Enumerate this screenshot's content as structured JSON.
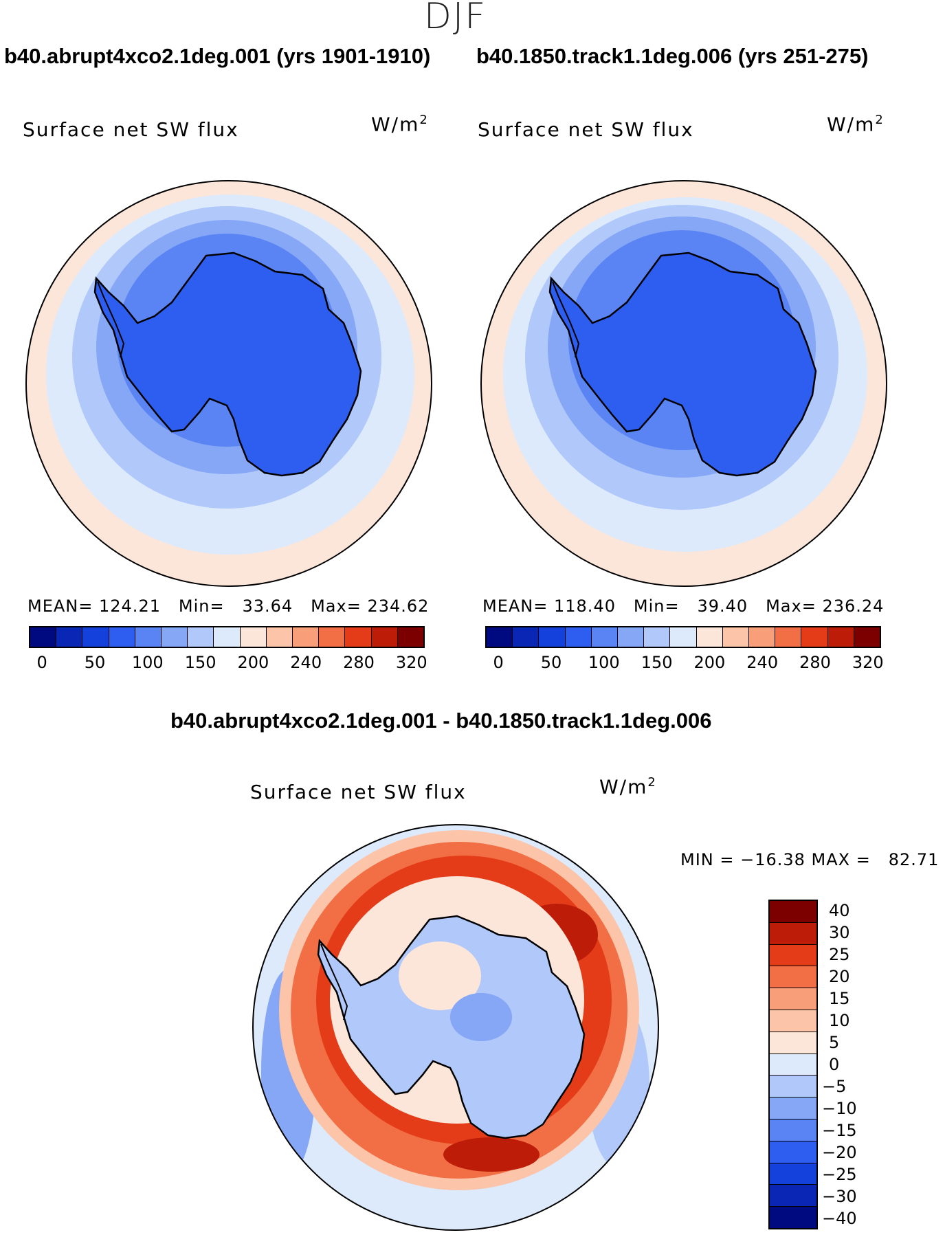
{
  "season": "DJF",
  "panels": {
    "left": {
      "title": "b40.abrupt4xco2.1deg.001 (yrs 1901-1910)",
      "label": "Surface net SW flux",
      "units_base": "W/m",
      "units_exp": "2",
      "mean_label": "MEAN=",
      "mean": "124.21",
      "min_label": "Min=",
      "min": "33.64",
      "max_label": "Max=",
      "max": "234.62"
    },
    "right": {
      "title": "b40.1850.track1.1deg.006 (yrs 251-275)",
      "label": "Surface net SW flux",
      "units_base": "W/m",
      "units_exp": "2",
      "mean_label": "MEAN=",
      "mean": "118.40",
      "min_label": "Min=",
      "min": "39.40",
      "max_label": "Max=",
      "max": "236.24"
    },
    "diff": {
      "title": "b40.abrupt4xco2.1deg.001 - b40.1850.track1.1deg.006",
      "label": "Surface net SW flux",
      "units_base": "W/m",
      "units_exp": "2",
      "minmax_text": "MIN = −16.38 MAX =   82.71"
    }
  },
  "colorbars": {
    "absolute": {
      "colors": [
        "#000a80",
        "#0a26b4",
        "#1440dc",
        "#2e5ef0",
        "#5a84f4",
        "#86a6f6",
        "#b0c8fa",
        "#dceafc",
        "#fce6da",
        "#fcc4a8",
        "#f89e78",
        "#f26e44",
        "#e43c18",
        "#bc1c08",
        "#7c0000"
      ],
      "tick_labels": [
        "0",
        "50",
        "100",
        "150",
        "200",
        "240",
        "280",
        "320"
      ],
      "tick_boundaries": [
        1,
        3,
        5,
        7,
        9,
        11,
        13,
        15
      ]
    },
    "difference": {
      "colors": [
        "#7c0000",
        "#bc1c08",
        "#e43c18",
        "#f26e44",
        "#f89e78",
        "#fcc4a8",
        "#fce6da",
        "#dceafc",
        "#b0c8fa",
        "#86a6f6",
        "#5a84f4",
        "#2e5ef0",
        "#1440dc",
        "#0a26b4",
        "#000a80"
      ],
      "tick_labels": [
        "40",
        "30",
        "25",
        "20",
        "15",
        "10",
        "5",
        "0",
        "−5",
        "−10",
        "−15",
        "−20",
        "−25",
        "−30",
        "−40"
      ]
    }
  },
  "map_colors": {
    "ring_outer": "#fce6da",
    "ring_2": "#dceafc",
    "ring_3": "#b0c8fa",
    "ring_4": "#86a6f6",
    "ring_5": "#5a84f4",
    "continent": "#2e5ef0",
    "diff_bg": "#dceafc",
    "diff_red_1": "#fcc4a8",
    "diff_red_2": "#f26e44",
    "diff_red_3": "#e43c18",
    "diff_red_4": "#bc1c08",
    "diff_inner": "#b0c8fa"
  }
}
